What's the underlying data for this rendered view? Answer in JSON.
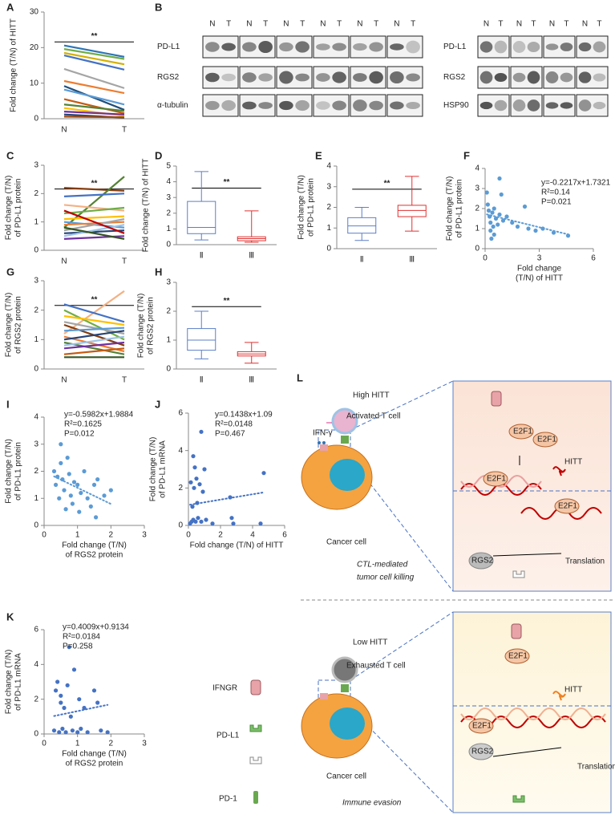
{
  "chart_data": [
    {
      "type": "line",
      "panel": "A",
      "ylabel": [
        "Fold change (T/N) of HITT"
      ],
      "categories": [
        "N",
        "T"
      ],
      "ylim": [
        0,
        30
      ],
      "yticks": [
        0,
        10,
        20,
        30
      ],
      "annotation": "**",
      "series": [
        {
          "color": "#2e75b6",
          "values": [
            20.6,
            17.4
          ]
        },
        {
          "color": "#70ad47",
          "values": [
            19.6,
            16.8
          ]
        },
        {
          "color": "#d4b000",
          "values": [
            18.5,
            15.3
          ]
        },
        {
          "color": "#4472c4",
          "values": [
            17.8,
            13.8
          ]
        },
        {
          "color": "#a5a5a5",
          "values": [
            14.0,
            8.6
          ]
        },
        {
          "color": "#ed7d31",
          "values": [
            10.6,
            7.2
          ]
        },
        {
          "color": "#1f4e79",
          "values": [
            9.2,
            2.5
          ]
        },
        {
          "color": "#5b9bd5",
          "values": [
            8.2,
            4.0
          ]
        },
        {
          "color": "#c55a11",
          "values": [
            5.5,
            1.5
          ]
        },
        {
          "color": "#548235",
          "values": [
            4.0,
            2.2
          ]
        },
        {
          "color": "#ffc000",
          "values": [
            3.0,
            0.8
          ]
        },
        {
          "color": "#7030a0",
          "values": [
            2.0,
            1.2
          ]
        },
        {
          "color": "#264478",
          "values": [
            1.2,
            0.3
          ]
        },
        {
          "color": "#9e480e",
          "values": [
            0.6,
            0.4
          ]
        }
      ]
    },
    {
      "type": "line",
      "panel": "C",
      "ylabel": [
        "Fold change (T/N)",
        "of PD-L1 protein"
      ],
      "categories": [
        "N",
        "T"
      ],
      "ylim": [
        0,
        3
      ],
      "yticks": [
        0,
        1,
        2,
        3
      ],
      "annotation": "**",
      "series": [
        {
          "color": "#843c0c",
          "values": [
            2.2,
            2.1
          ]
        },
        {
          "color": "#548235",
          "values": [
            0.8,
            2.6
          ]
        },
        {
          "color": "#4472c4",
          "values": [
            1.9,
            2.0
          ]
        },
        {
          "color": "#f4b183",
          "values": [
            1.6,
            1.4
          ]
        },
        {
          "color": "#70ad47",
          "values": [
            1.3,
            1.5
          ]
        },
        {
          "color": "#ffc000",
          "values": [
            1.1,
            1.2
          ]
        },
        {
          "color": "#5b9bd5",
          "values": [
            1.0,
            0.8
          ]
        },
        {
          "color": "#ed7d31",
          "values": [
            0.9,
            1.0
          ]
        },
        {
          "color": "#a5a5a5",
          "values": [
            0.7,
            1.1
          ]
        },
        {
          "color": "#264478",
          "values": [
            0.6,
            0.7
          ]
        },
        {
          "color": "#9dc3e6",
          "values": [
            0.5,
            0.9
          ]
        },
        {
          "color": "#c00000",
          "values": [
            1.4,
            0.6
          ]
        },
        {
          "color": "#7030a0",
          "values": [
            0.4,
            0.5
          ]
        },
        {
          "color": "#375623",
          "values": [
            0.8,
            0.4
          ]
        }
      ]
    },
    {
      "type": "box",
      "panel": "D",
      "ylabel": [
        "Fold change (T/N) of HITT"
      ],
      "categories": [
        "Ⅱ",
        "Ⅲ"
      ],
      "ylim": [
        0,
        5
      ],
      "yticks": [
        0,
        1,
        2,
        3,
        4,
        5
      ],
      "annotation": "**",
      "boxes": [
        {
          "color": "#5b7fc7",
          "min": 0.3,
          "q1": 0.7,
          "median": 1.1,
          "q3": 2.75,
          "max": 4.65
        },
        {
          "color": "#e03030",
          "min": 0.15,
          "q1": 0.25,
          "median": 0.38,
          "q3": 0.5,
          "max": 2.15
        }
      ]
    },
    {
      "type": "box",
      "panel": "E",
      "ylabel": [
        "Fold change (T/N)",
        "of PD-L1 protein"
      ],
      "categories": [
        "Ⅱ",
        "Ⅲ"
      ],
      "ylim": [
        0,
        4
      ],
      "yticks": [
        0,
        1,
        2,
        3,
        4
      ],
      "annotation": "**",
      "boxes": [
        {
          "color": "#5b7fc7",
          "min": 0.4,
          "q1": 0.75,
          "median": 1.1,
          "q3": 1.5,
          "max": 2.0
        },
        {
          "color": "#e03030",
          "min": 0.85,
          "q1": 1.55,
          "median": 1.85,
          "q3": 2.1,
          "max": 3.5
        }
      ]
    },
    {
      "type": "scatter",
      "panel": "F",
      "ylabel": [
        "Fold change (T/N)",
        "of PD-L1  protein"
      ],
      "xlabel": [
        "Fold change",
        "(T/N) of HITT"
      ],
      "color": "#5b9bd5",
      "xlim": [
        0,
        6
      ],
      "xticks": [
        0,
        3,
        6
      ],
      "ylim": [
        0,
        4
      ],
      "yticks": [
        0,
        1,
        2,
        3,
        4
      ],
      "x": [
        0.1,
        0.15,
        0.2,
        0.25,
        0.3,
        0.3,
        0.35,
        0.4,
        0.45,
        0.5,
        0.5,
        0.6,
        0.7,
        0.8,
        0.8,
        0.9,
        1.0,
        1.2,
        1.5,
        1.8,
        2.2,
        2.4,
        2.8,
        3.2,
        3.8,
        4.6
      ],
      "values": [
        2.8,
        2.2,
        1.9,
        1.6,
        1.3,
        0.9,
        0.5,
        1.8,
        1.1,
        0.7,
        2.0,
        1.5,
        1.2,
        3.5,
        1.7,
        2.7,
        1.4,
        1.6,
        1.3,
        1.1,
        2.1,
        1.0,
        0.9,
        1.0,
        0.8,
        0.65
      ],
      "fit": {
        "slope": -0.2217,
        "intercept": 1.7321
      },
      "stats": [
        {
          "text": "y=-0.2217x+1.7321",
          "color": "#000000"
        },
        {
          "text": "R²=0.14",
          "color": "#000000"
        },
        {
          "text": "P=0.021",
          "color": "#e00000"
        }
      ]
    },
    {
      "type": "line",
      "panel": "G",
      "ylabel": [
        "Fold change (T/N)",
        "of RGS2 protein"
      ],
      "categories": [
        "N",
        "T"
      ],
      "ylim": [
        0,
        3
      ],
      "yticks": [
        0,
        1,
        2,
        3
      ],
      "annotation": "**",
      "series": [
        {
          "color": "#f4b183",
          "values": [
            1.2,
            2.65
          ]
        },
        {
          "color": "#4472c4",
          "values": [
            2.2,
            1.6
          ]
        },
        {
          "color": "#70ad47",
          "values": [
            2.0,
            1.0
          ]
        },
        {
          "color": "#ffc000",
          "values": [
            1.8,
            1.5
          ]
        },
        {
          "color": "#a5a5a5",
          "values": [
            1.6,
            1.2
          ]
        },
        {
          "color": "#843c0c",
          "values": [
            1.5,
            0.8
          ]
        },
        {
          "color": "#5b9bd5",
          "values": [
            1.3,
            1.4
          ]
        },
        {
          "color": "#ed7d31",
          "values": [
            1.1,
            0.6
          ]
        },
        {
          "color": "#264478",
          "values": [
            1.0,
            1.3
          ]
        },
        {
          "color": "#548235",
          "values": [
            0.9,
            0.5
          ]
        },
        {
          "color": "#9dc3e6",
          "values": [
            0.8,
            1.1
          ]
        },
        {
          "color": "#7030a0",
          "values": [
            0.7,
            0.9
          ]
        },
        {
          "color": "#c55a11",
          "values": [
            0.5,
            0.7
          ]
        },
        {
          "color": "#375623",
          "values": [
            0.4,
            0.4
          ]
        }
      ]
    },
    {
      "type": "box",
      "panel": "H",
      "ylabel": [
        "Fold change (T/N)",
        "of RGS2 protein"
      ],
      "categories": [
        "Ⅱ",
        "Ⅲ"
      ],
      "ylim": [
        0,
        3
      ],
      "yticks": [
        0,
        1,
        2,
        3
      ],
      "annotation": "**",
      "boxes": [
        {
          "color": "#5b7fc7",
          "min": 0.35,
          "q1": 0.65,
          "median": 1.0,
          "q3": 1.4,
          "max": 2.0
        },
        {
          "color": "#e03030",
          "min": 0.2,
          "q1": 0.45,
          "median": 0.52,
          "q3": 0.6,
          "max": 0.92
        }
      ]
    },
    {
      "type": "scatter",
      "panel": "I",
      "ylabel": [
        "Fold change (T/N)",
        "of PD-L1 protein"
      ],
      "xlabel": [
        "Fold change (T/N)",
        "of RGS2 protein"
      ],
      "color": "#5b9bd5",
      "xlim": [
        0,
        3
      ],
      "xticks": [
        0,
        1,
        2,
        3
      ],
      "ylim": [
        0,
        4
      ],
      "yticks": [
        0,
        1,
        2,
        3,
        4
      ],
      "x": [
        0.3,
        0.35,
        0.4,
        0.45,
        0.5,
        0.5,
        0.55,
        0.6,
        0.65,
        0.7,
        0.75,
        0.8,
        0.85,
        0.9,
        1.0,
        1.05,
        1.1,
        1.2,
        1.3,
        1.4,
        1.5,
        1.55,
        1.6,
        1.8,
        2.0
      ],
      "values": [
        2.0,
        1.5,
        1.8,
        1.0,
        2.3,
        3.0,
        1.7,
        1.3,
        0.6,
        2.5,
        1.9,
        1.1,
        0.8,
        1.6,
        1.5,
        0.5,
        1.2,
        2.0,
        1.0,
        0.7,
        1.5,
        0.3,
        1.7,
        1.1,
        1.3
      ],
      "fit": {
        "slope": -0.5982,
        "intercept": 1.9884
      },
      "stats": [
        {
          "text": "y=-0.5982x+1.9884",
          "color": "#000000"
        },
        {
          "text": "R²=0.1625",
          "color": "#000000"
        },
        {
          "text": "P=0.012",
          "color": "#e00000"
        }
      ]
    },
    {
      "type": "scatter",
      "panel": "J",
      "ylabel": [
        "Fold change (T/N)",
        "of PD-L1 mRNA"
      ],
      "xlabel": [
        "Fold change (T/N) of HITT"
      ],
      "color": "#4472c4",
      "xlim": [
        0,
        6
      ],
      "xticks": [
        0,
        2,
        4,
        6
      ],
      "ylim": [
        0,
        6
      ],
      "yticks": [
        0,
        2,
        4,
        6
      ],
      "x": [
        0.1,
        0.15,
        0.2,
        0.25,
        0.3,
        0.3,
        0.35,
        0.4,
        0.45,
        0.5,
        0.55,
        0.6,
        0.7,
        0.8,
        0.8,
        0.9,
        1.0,
        1.1,
        1.5,
        2.6,
        2.7,
        2.8,
        4.5,
        4.7
      ],
      "values": [
        0.1,
        2.3,
        0.2,
        1.0,
        3.7,
        0.3,
        2.0,
        3.1,
        0.2,
        2.5,
        1.2,
        0.4,
        2.2,
        5.0,
        0.2,
        1.8,
        3.0,
        0.3,
        0.1,
        1.5,
        0.4,
        0.1,
        0.1,
        2.8
      ],
      "fit": {
        "slope": 0.1438,
        "intercept": 1.09
      },
      "stats": [
        {
          "text": "y=0.1438x+1.09",
          "color": "#000000"
        },
        {
          "text": "R²=0.0148",
          "color": "#000000"
        },
        {
          "text": "P=0.467",
          "color": "#000000"
        }
      ]
    },
    {
      "type": "scatter",
      "panel": "K",
      "ylabel": [
        "Fold change (T/N)",
        "of PD-L1 mRNA"
      ],
      "xlabel": [
        "Fold change (T/N)",
        "of RGS2 protein"
      ],
      "color": "#4472c4",
      "xlim": [
        0,
        3
      ],
      "xticks": [
        0,
        1,
        2,
        3
      ],
      "ylim": [
        0,
        6
      ],
      "yticks": [
        0,
        2,
        4,
        6
      ],
      "x": [
        0.3,
        0.35,
        0.4,
        0.45,
        0.5,
        0.5,
        0.55,
        0.6,
        0.65,
        0.7,
        0.75,
        0.8,
        0.85,
        0.9,
        1.0,
        1.05,
        1.1,
        1.2,
        1.3,
        1.5,
        1.6,
        1.7,
        1.9
      ],
      "values": [
        0.2,
        2.5,
        3.0,
        0.1,
        1.8,
        2.2,
        0.3,
        1.5,
        0.1,
        2.8,
        5.0,
        1.0,
        0.2,
        3.7,
        0.1,
        2.0,
        0.3,
        1.5,
        0.1,
        2.5,
        1.8,
        0.2,
        0.1
      ],
      "fit": {
        "slope": 0.4009,
        "intercept": 0.9134
      },
      "stats": [
        {
          "text": "y=0.4009x+0.9134",
          "color": "#000000"
        },
        {
          "text": "R²=0.0184",
          "color": "#000000"
        },
        {
          "text": "P=0.258",
          "color": "#000000"
        }
      ]
    }
  ],
  "blot": {
    "panel": "B",
    "lanes": [
      "N",
      "T"
    ],
    "left_rows": [
      "PD-L1",
      "RGS2",
      "α-tubulin"
    ],
    "right_rows": [
      "PD-L1",
      "RGS2",
      "HSP90"
    ]
  },
  "diagram": {
    "panel": "L",
    "high": {
      "title": "High HITT",
      "t_cell": "Activated T cell",
      "cytokine": "IFN-γ",
      "cancer": "Cancer cell",
      "outcome": [
        "CTL-mediated",
        "tumor cell killing"
      ],
      "factors": [
        "E2F1",
        "E2F1",
        "E2F1",
        "E2F1"
      ],
      "hitt": "HITT",
      "rgs2": "RGS2",
      "translation": "Translation"
    },
    "low": {
      "title": "Low HITT",
      "t_cell": "Exhausted T cell",
      "cancer": "Cancer cell",
      "outcome": "Immune evasion",
      "factors": [
        "E2F1",
        "E2F1"
      ],
      "hitt": "HITT",
      "rgs2": "RGS2",
      "translation": "Translation"
    },
    "legend": [
      "IFNGR",
      "PD-L1",
      "PD-1"
    ]
  }
}
